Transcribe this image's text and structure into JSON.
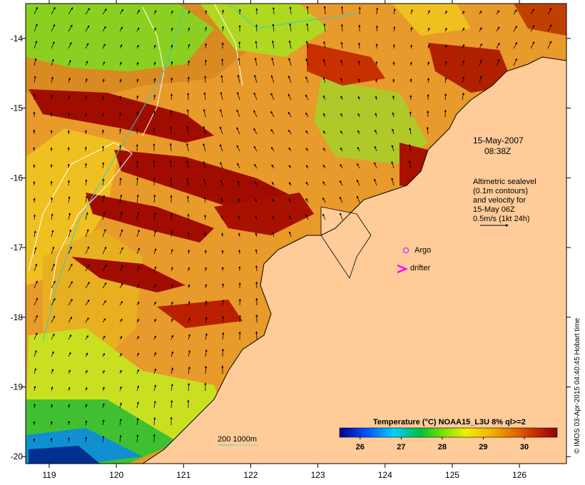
{
  "map": {
    "y_axis_labels": [
      "-14",
      "-15",
      "-16",
      "-17",
      "-18",
      "-19",
      "-20"
    ],
    "x_axis_labels": [
      "119",
      "120",
      "121",
      "122",
      "123",
      "124",
      "125",
      "126"
    ],
    "lat_range": [
      -20.1,
      -13.5
    ],
    "lon_range": [
      118.65,
      126.7
    ]
  },
  "annotations": {
    "date": "15-May-2007",
    "time": "08:38Z",
    "altimetry_lines": [
      "Altimetric sealevel",
      "(0.1m contours)",
      "and velocity for",
      "15-May 06Z",
      "0.5m/s (1kt 24h)"
    ],
    "argo_label": "Argo",
    "drifter_label": "drifter",
    "depth_label": "200  1000m"
  },
  "colorbar": {
    "title": "Temperature (°C) NOAA15_L3U 8% ql>=2",
    "ticks": [
      "26",
      "27",
      "28",
      "29",
      "30"
    ],
    "range": [
      25.5,
      30.8
    ]
  },
  "credit": "© IMOS 03-Apr-2015 04:40:45 Hobart time",
  "colors": {
    "land": "#ffcc99",
    "argo": "#e040e0",
    "drifter": "#ff00ff",
    "contour_200": "#33cccc",
    "sealevel_contour": "#ffffff"
  }
}
